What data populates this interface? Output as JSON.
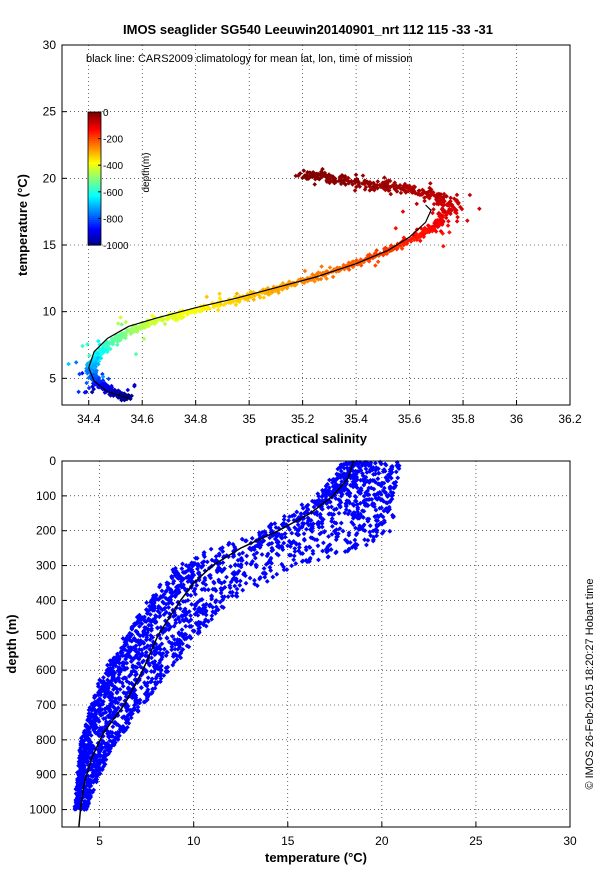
{
  "title": "IMOS seaglider SG540 Leeuwin20140901_nrt 112  115  -33  -31",
  "copyright": "© IMOS 26-Feb-2015 18:20:27 Hobart time",
  "colors": {
    "profile": "#0000ff",
    "climatology": "#000000"
  },
  "chart_data": [
    {
      "type": "scatter",
      "title": "",
      "annotation": "black line: CARS2009 climatology for mean lat, lon, time of mission",
      "xlabel": "practical salinity",
      "ylabel": "temperature (°C)",
      "xlim": [
        34.3,
        36.2
      ],
      "ylim": [
        3,
        30
      ],
      "xticks": [
        34.4,
        34.6,
        34.8,
        35,
        35.2,
        35.4,
        35.6,
        35.8,
        36,
        36.2
      ],
      "yticks": [
        5,
        10,
        15,
        20,
        25,
        30
      ],
      "grid": true,
      "colorbar": {
        "label": "depth(m)",
        "colormap": "jet",
        "range": [
          -1000,
          0
        ],
        "ticks": [
          0,
          -200,
          -400,
          -600,
          -800,
          -1000
        ]
      },
      "climatology": {
        "x": [
          34.55,
          34.47,
          34.42,
          34.4,
          34.42,
          34.47,
          34.55,
          34.65,
          34.8,
          34.95,
          35.1,
          35.25,
          35.4,
          35.52,
          35.6,
          35.66,
          35.68,
          35.66
        ],
        "y": [
          3.5,
          4.0,
          4.8,
          5.8,
          7.0,
          8.0,
          8.9,
          9.5,
          10.3,
          11.0,
          11.8,
          12.6,
          13.6,
          14.6,
          15.6,
          16.7,
          17.6,
          18.0
        ]
      },
      "series": [
        {
          "x": [
            34.55,
            34.5,
            34.45,
            34.42,
            34.41,
            34.43,
            34.47,
            34.55,
            34.65,
            34.8,
            34.95,
            35.1,
            35.25,
            35.4,
            35.52,
            35.62,
            35.7,
            35.75,
            35.72,
            35.6,
            35.45,
            35.3,
            35.2
          ],
          "y": [
            3.5,
            3.9,
            4.4,
            5.0,
            5.8,
            6.6,
            7.5,
            8.5,
            9.3,
            10.1,
            10.9,
            11.7,
            12.6,
            13.6,
            14.6,
            15.5,
            16.5,
            17.6,
            18.6,
            19.2,
            19.6,
            20.0,
            20.4
          ],
          "depth": [
            -1000,
            -950,
            -880,
            -800,
            -720,
            -640,
            -560,
            -480,
            -420,
            -370,
            -330,
            -290,
            -250,
            -210,
            -180,
            -150,
            -120,
            -90,
            -60,
            -40,
            -25,
            -10,
            0
          ]
        }
      ]
    },
    {
      "type": "scatter",
      "title": "",
      "xlabel": "temperature (°C)",
      "ylabel": "depth (m)",
      "xlim": [
        3,
        30
      ],
      "ylim": [
        1050,
        0
      ],
      "xticks": [
        5,
        10,
        15,
        20,
        25,
        30
      ],
      "yticks": [
        0,
        100,
        200,
        300,
        400,
        500,
        600,
        700,
        800,
        900,
        1000
      ],
      "grid": true,
      "climatology": {
        "x": [
          18.5,
          18.2,
          17.4,
          16.2,
          14.5,
          12.5,
          11.0,
          10.0,
          9.3,
          8.7,
          8.1,
          7.3,
          6.3,
          5.2,
          4.6,
          4.2,
          4.0,
          3.9
        ],
        "y": [
          0,
          50,
          100,
          150,
          200,
          250,
          300,
          350,
          400,
          450,
          500,
          600,
          700,
          780,
          850,
          920,
          990,
          1050
        ]
      },
      "series": [
        {
          "temp_min": [
            18.0,
            16.5,
            13.5,
            11.0,
            9.0,
            7.5,
            6.3,
            5.2,
            4.5,
            4.0,
            3.8,
            3.6
          ],
          "temp_max": [
            21.0,
            20.7,
            20.6,
            19.2,
            15.5,
            12.0,
            10.2,
            8.8,
            7.3,
            6.0,
            5.0,
            4.3
          ],
          "depth": [
            0,
            100,
            200,
            250,
            300,
            400,
            500,
            600,
            700,
            800,
            900,
            1000
          ]
        }
      ]
    }
  ]
}
